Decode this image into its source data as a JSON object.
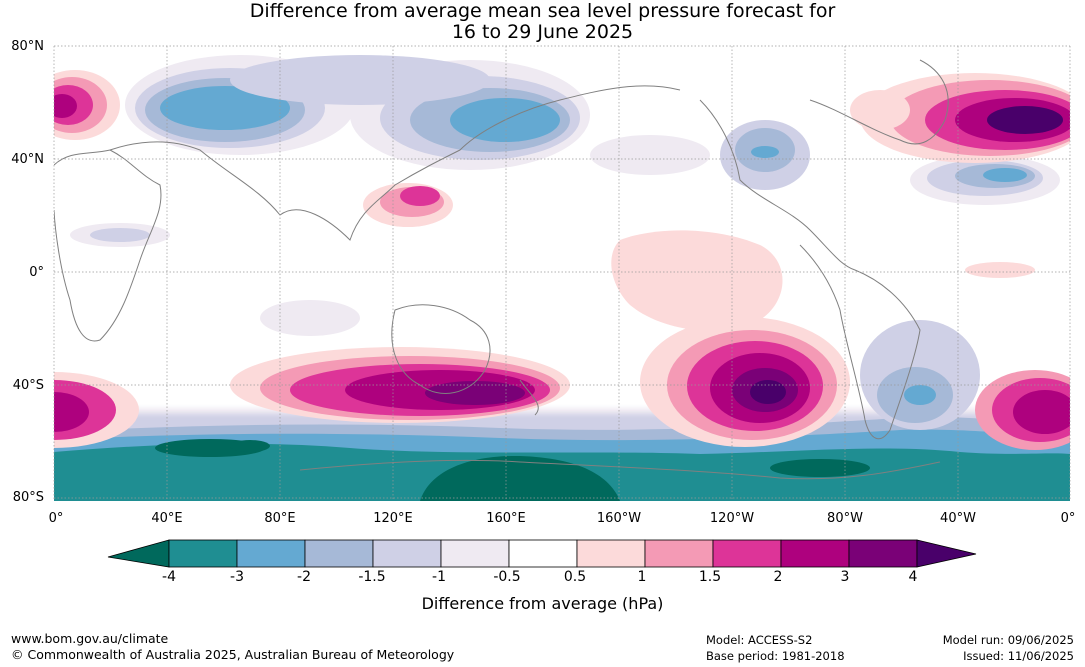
{
  "title": {
    "line1": "Difference from average mean sea level pressure forecast for",
    "line2": "16 to 29 June 2025"
  },
  "map": {
    "lat_labels": [
      "80°N",
      "40°N",
      "0°",
      "40°S",
      "80°S"
    ],
    "lon_labels": [
      "0°",
      "40°E",
      "80°E",
      "120°E",
      "160°E",
      "160°W",
      "120°W",
      "80°W",
      "40°W",
      "0°"
    ],
    "gridlines": true
  },
  "colorbar": {
    "ticks": [
      "-4",
      "-3",
      "-2",
      "-1.5",
      "-1",
      "-0.5",
      "0.5",
      "1",
      "1.5",
      "2",
      "3",
      "4"
    ],
    "label": "Difference from average (hPa)",
    "colors": {
      "below_min": "#00695c",
      "bins": [
        "#1f8e92",
        "#64a9d2",
        "#a6b9d7",
        "#cfd0e6",
        "#efeaf2",
        "#ffffff",
        "#fcdada",
        "#f49ab5",
        "#dd3498",
        "#ae017e",
        "#7a0177"
      ],
      "above_max": "#49006a"
    }
  },
  "footer": {
    "url": "www.bom.gov.au/climate",
    "copyright": "© Commonwealth of Australia 2025, Australian Bureau of Meteorology",
    "model": "Model: ACCESS-S2",
    "base_period": "Base period: 1981-2018",
    "model_run": "Model run: 09/06/2025",
    "issued": "Issued: 11/06/2025"
  }
}
